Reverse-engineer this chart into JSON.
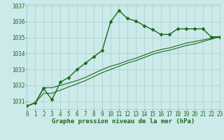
{
  "series": [
    {
      "x": [
        0,
        1,
        2,
        3,
        4,
        5,
        6,
        7,
        8,
        9,
        10,
        11,
        12,
        13,
        14,
        15,
        16,
        17,
        18,
        19,
        20,
        21,
        22,
        23
      ],
      "y": [
        1030.7,
        1030.9,
        1031.8,
        1031.1,
        1032.2,
        1032.5,
        1033.0,
        1033.4,
        1033.8,
        1034.2,
        1036.0,
        1036.7,
        1036.2,
        1036.05,
        1035.75,
        1035.5,
        1035.2,
        1035.2,
        1035.55,
        1035.55,
        1035.55,
        1035.55,
        1035.05,
        1035.05
      ],
      "color": "#1a6b1a",
      "linewidth": 1.0,
      "marker": "D",
      "markersize": 2.5
    },
    {
      "x": [
        0,
        1,
        2,
        3,
        4,
        5,
        6,
        7,
        8,
        9,
        10,
        11,
        12,
        13,
        14,
        15,
        16,
        17,
        18,
        19,
        20,
        21,
        22,
        23
      ],
      "y": [
        1030.7,
        1030.9,
        1031.85,
        1031.85,
        1032.0,
        1032.15,
        1032.3,
        1032.5,
        1032.75,
        1033.0,
        1033.2,
        1033.35,
        1033.55,
        1033.7,
        1033.9,
        1034.1,
        1034.25,
        1034.35,
        1034.5,
        1034.65,
        1034.75,
        1034.85,
        1034.95,
        1035.05
      ],
      "color": "#1a6b1a",
      "linewidth": 0.8,
      "marker": null,
      "markersize": 0
    },
    {
      "x": [
        0,
        1,
        2,
        3,
        4,
        5,
        6,
        7,
        8,
        9,
        10,
        11,
        12,
        13,
        14,
        15,
        16,
        17,
        18,
        19,
        20,
        21,
        22,
        23
      ],
      "y": [
        1030.7,
        1030.9,
        1031.5,
        1031.5,
        1031.7,
        1031.9,
        1032.1,
        1032.3,
        1032.55,
        1032.8,
        1033.0,
        1033.2,
        1033.4,
        1033.55,
        1033.75,
        1033.95,
        1034.1,
        1034.2,
        1034.35,
        1034.5,
        1034.6,
        1034.75,
        1034.9,
        1035.05
      ],
      "color": "#1a6b1a",
      "linewidth": 0.8,
      "marker": null,
      "markersize": 0
    }
  ],
  "xlim": [
    0,
    23
  ],
  "ylim": [
    1030.5,
    1037.1
  ],
  "yticks": [
    1031,
    1032,
    1033,
    1034,
    1035,
    1036,
    1037
  ],
  "xticks": [
    0,
    1,
    2,
    3,
    4,
    5,
    6,
    7,
    8,
    9,
    10,
    11,
    12,
    13,
    14,
    15,
    16,
    17,
    18,
    19,
    20,
    21,
    22,
    23
  ],
  "xlabel": "Graphe pression niveau de la mer (hPa)",
  "background_color": "#cceaea",
  "grid_color": "#aacccc",
  "tick_color": "#1a6b1a",
  "label_color": "#1a6b1a",
  "xlabel_fontsize": 6.5,
  "tick_fontsize": 5.5
}
